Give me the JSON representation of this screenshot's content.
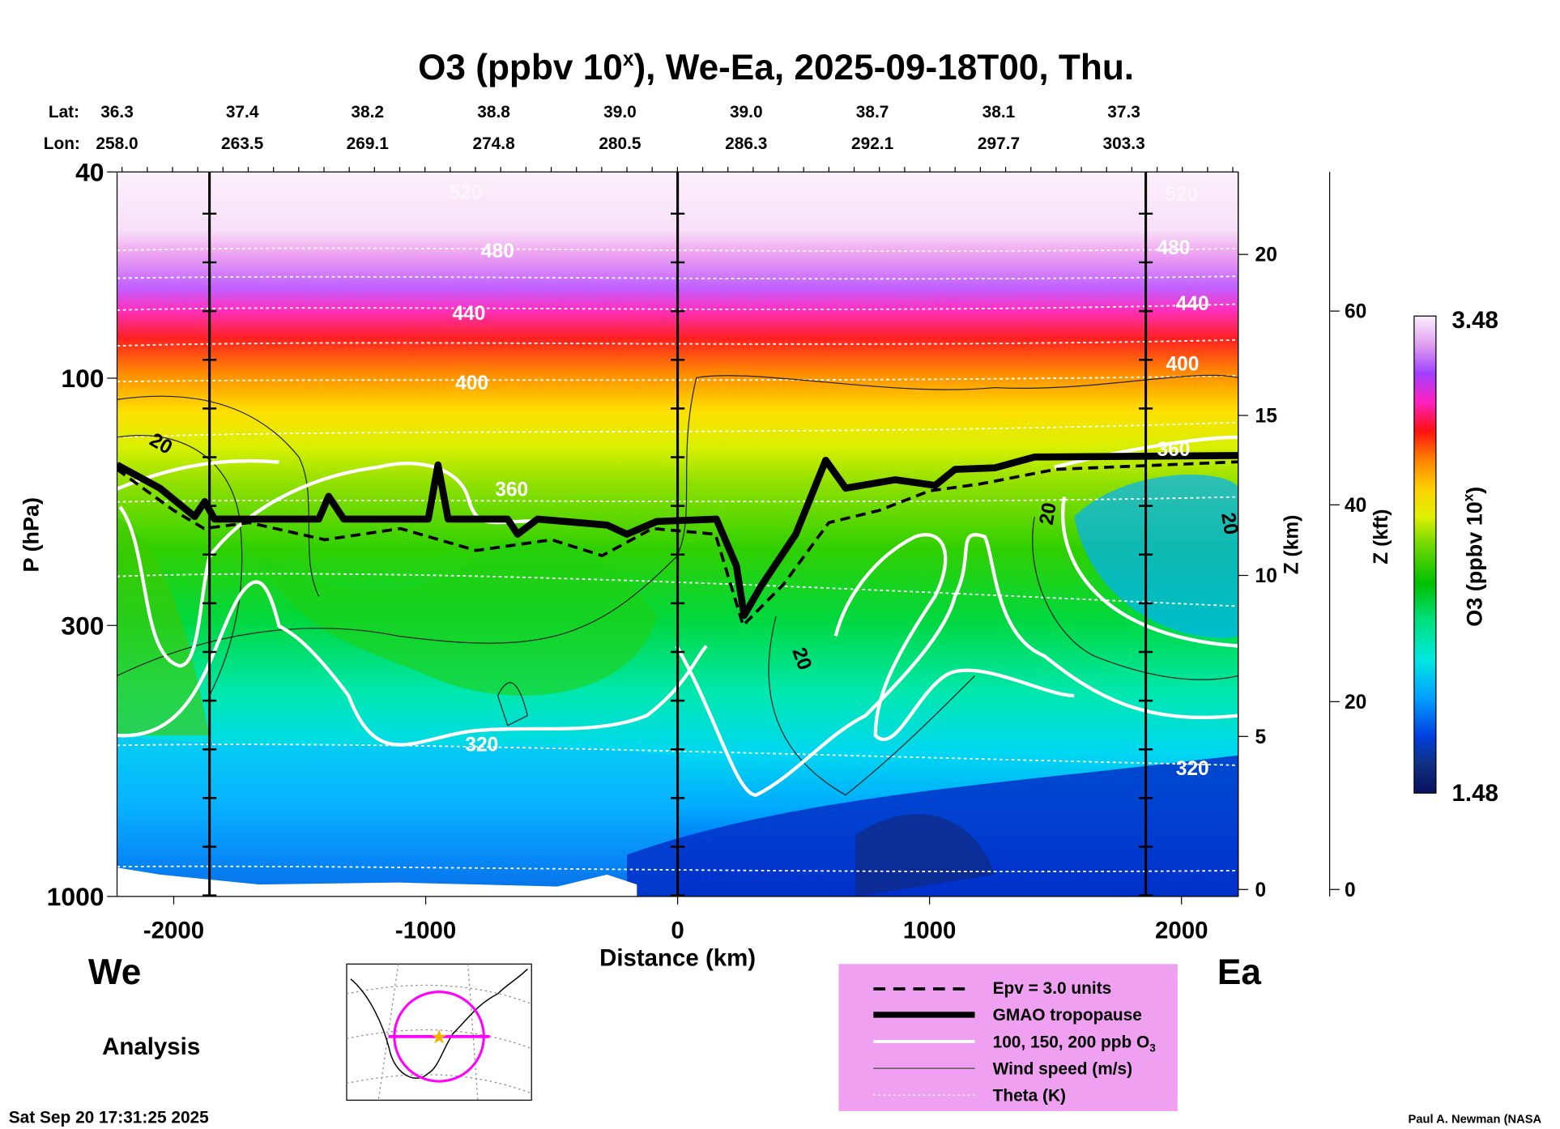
{
  "chart_data": {
    "type": "heatmap",
    "title": "O3 (ppbv 10",
    "title_sup": "x",
    "title_rest": "), We-Ea, 2025-09-18T00, Thu.",
    "xlabel": "Distance (km)",
    "ylabel": "P (hPa)",
    "y2label": "Z (km)",
    "y3label": "Z (kft)",
    "xlim": [
      -2225,
      2225
    ],
    "ylim_hpa": [
      1000,
      40
    ],
    "x_ticks": [
      "-2000",
      "-1000",
      "0",
      "1000",
      "2000"
    ],
    "x_tick_values": [
      -2000,
      -1000,
      0,
      1000,
      2000
    ],
    "y_ticks": [
      "40",
      "100",
      "300",
      "1000"
    ],
    "y_tick_values": [
      40,
      100,
      300,
      1000
    ],
    "zkm_ticks": [
      "20",
      "15",
      "10",
      "5",
      "0"
    ],
    "zkft_ticks": [
      "60",
      "40",
      "20",
      "0"
    ],
    "lat_label": "Lat:",
    "lon_label": "Lon:",
    "lat": [
      "36.3",
      "37.4",
      "38.2",
      "38.8",
      "39.0",
      "39.0",
      "38.7",
      "38.1",
      "37.3"
    ],
    "lon": [
      "258.0",
      "263.5",
      "269.1",
      "274.8",
      "280.5",
      "286.3",
      "292.1",
      "297.7",
      "303.3"
    ],
    "left_end": "We",
    "right_end": "Ea",
    "colorbar": {
      "label": "O3 (ppbv 10",
      "label_sup": "x",
      "label_end": ")",
      "max": "3.48",
      "min": "1.48"
    },
    "theta_labels": [
      "520",
      "480",
      "440",
      "400",
      "360",
      "320",
      "520",
      "480",
      "440",
      "400",
      "360",
      "320"
    ],
    "wind_labels": [
      "20",
      "20",
      "20",
      "20"
    ],
    "tropopause": [
      [
        -2225,
        147
      ],
      [
        -2055,
        163
      ],
      [
        -1917,
        185
      ],
      [
        -1877,
        173
      ],
      [
        -1838,
        187
      ],
      [
        -1424,
        187
      ],
      [
        -1385,
        169
      ],
      [
        -1325,
        187
      ],
      [
        -990,
        187
      ],
      [
        -951,
        147
      ],
      [
        -911,
        187
      ],
      [
        -675,
        187
      ],
      [
        -635,
        200
      ],
      [
        -556,
        187
      ],
      [
        -280,
        192
      ],
      [
        -201,
        200
      ],
      [
        -83,
        189
      ],
      [
        154,
        187
      ],
      [
        233,
        230
      ],
      [
        264,
        287
      ],
      [
        331,
        252
      ],
      [
        469,
        200
      ],
      [
        588,
        144
      ],
      [
        667,
        163
      ],
      [
        864,
        157
      ],
      [
        1022,
        161
      ],
      [
        1101,
        150
      ],
      [
        1258,
        149
      ],
      [
        1416,
        142
      ],
      [
        2225,
        141
      ]
    ],
    "epv_3": [
      [
        -2225,
        150
      ],
      [
        -2000,
        180
      ],
      [
        -1880,
        195
      ],
      [
        -1700,
        190
      ],
      [
        -1400,
        205
      ],
      [
        -1100,
        195
      ],
      [
        -800,
        215
      ],
      [
        -500,
        205
      ],
      [
        -300,
        220
      ],
      [
        -100,
        195
      ],
      [
        150,
        200
      ],
      [
        260,
        300
      ],
      [
        420,
        250
      ],
      [
        600,
        190
      ],
      [
        800,
        180
      ],
      [
        1000,
        165
      ],
      [
        1200,
        160
      ],
      [
        1500,
        150
      ],
      [
        2225,
        145
      ]
    ]
  },
  "legend": {
    "items": [
      "Epv = 3.0 units",
      "GMAO tropopause",
      "100, 150, 200 ppb O",
      "Wind speed (m/s)",
      "Theta (K)"
    ],
    "o3_sub": "3"
  },
  "footer": {
    "analysis": "Analysis",
    "timestamp": "Sat Sep 20 17:31:25 2025",
    "credit": "Paul A. Newman (NASA"
  }
}
